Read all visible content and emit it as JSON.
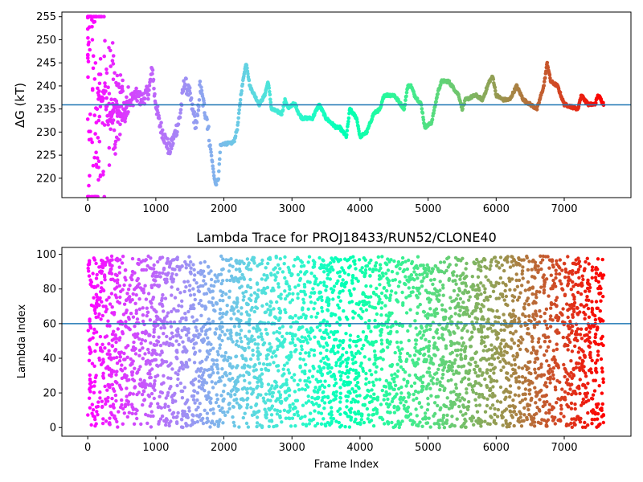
{
  "chart_data": [
    {
      "type": "scatter",
      "title": "",
      "xlabel": "",
      "ylabel": "ΔG (kT)",
      "xlim": [
        -380,
        7980
      ],
      "ylim": [
        215.8,
        256.0
      ],
      "x_ticks": [
        0,
        1000,
        2000,
        3000,
        4000,
        5000,
        6000,
        7000
      ],
      "y_ticks": [
        220,
        225,
        230,
        235,
        240,
        245,
        250,
        255
      ],
      "hline": 235.9,
      "colormap": "rainbow",
      "color_by": "x",
      "grid": false,
      "x_range": [
        0,
        7580
      ],
      "trace_points": [
        [
          0,
          250
        ],
        [
          20,
          245
        ],
        [
          40,
          220
        ],
        [
          60,
          235
        ],
        [
          80,
          248
        ],
        [
          100,
          228
        ],
        [
          150,
          238
        ],
        [
          200,
          236
        ],
        [
          250,
          240
        ],
        [
          300,
          232
        ],
        [
          400,
          236
        ],
        [
          500,
          234
        ],
        [
          600,
          236
        ],
        [
          700,
          238
        ],
        [
          800,
          237
        ],
        [
          900,
          239
        ],
        [
          950,
          244
        ],
        [
          980,
          238
        ],
        [
          1050,
          232
        ],
        [
          1100,
          230
        ],
        [
          1200,
          226
        ],
        [
          1250,
          228
        ],
        [
          1350,
          233
        ],
        [
          1420,
          241
        ],
        [
          1500,
          238
        ],
        [
          1550,
          234
        ],
        [
          1600,
          231
        ],
        [
          1650,
          240
        ],
        [
          1700,
          236
        ],
        [
          1750,
          233
        ],
        [
          1800,
          227
        ],
        [
          1850,
          221
        ],
        [
          1880,
          218.5
        ],
        [
          1920,
          220
        ],
        [
          1950,
          227
        ],
        [
          2000,
          227.5
        ],
        [
          2100,
          227.5
        ],
        [
          2150,
          228
        ],
        [
          2200,
          231
        ],
        [
          2250,
          238
        ],
        [
          2300,
          243
        ],
        [
          2330,
          245
        ],
        [
          2380,
          240
        ],
        [
          2450,
          238
        ],
        [
          2520,
          236
        ],
        [
          2600,
          238
        ],
        [
          2650,
          241
        ],
        [
          2700,
          235
        ],
        [
          2850,
          234
        ],
        [
          2900,
          237
        ],
        [
          2950,
          235
        ],
        [
          3000,
          236
        ],
        [
          3050,
          236
        ],
        [
          3100,
          234
        ],
        [
          3150,
          233
        ],
        [
          3300,
          233
        ],
        [
          3400,
          236
        ],
        [
          3500,
          233
        ],
        [
          3650,
          231
        ],
        [
          3700,
          231
        ],
        [
          3800,
          229
        ],
        [
          3850,
          235
        ],
        [
          3950,
          233
        ],
        [
          4000,
          229
        ],
        [
          4100,
          230
        ],
        [
          4200,
          234
        ],
        [
          4300,
          235
        ],
        [
          4350,
          238
        ],
        [
          4500,
          238
        ],
        [
          4550,
          237
        ],
        [
          4650,
          235
        ],
        [
          4700,
          240
        ],
        [
          4750,
          240
        ],
        [
          4800,
          238
        ],
        [
          4900,
          236
        ],
        [
          4950,
          231
        ],
        [
          5050,
          232
        ],
        [
          5150,
          239
        ],
        [
          5200,
          241
        ],
        [
          5300,
          241
        ],
        [
          5400,
          239
        ],
        [
          5450,
          238
        ],
        [
          5500,
          235
        ],
        [
          5550,
          237
        ],
        [
          5700,
          238
        ],
        [
          5800,
          237
        ],
        [
          5900,
          241
        ],
        [
          5950,
          242
        ],
        [
          6000,
          238
        ],
        [
          6100,
          237
        ],
        [
          6200,
          237
        ],
        [
          6300,
          240
        ],
        [
          6400,
          237
        ],
        [
          6500,
          236
        ],
        [
          6600,
          235
        ],
        [
          6700,
          240
        ],
        [
          6750,
          245
        ],
        [
          6800,
          241
        ],
        [
          6900,
          240
        ],
        [
          7000,
          236
        ],
        [
          7200,
          235
        ],
        [
          7250,
          238
        ],
        [
          7350,
          236
        ],
        [
          7450,
          236
        ],
        [
          7500,
          238
        ],
        [
          7580,
          236
        ]
      ],
      "early_scatter": {
        "x_range": [
          0,
          600
        ],
        "y_range": [
          216,
          255
        ]
      }
    },
    {
      "type": "scatter",
      "title": "Lambda Trace for PROJ18433/RUN52/CLONE40",
      "xlabel": "Frame Index",
      "ylabel": "Lambda Index",
      "xlim": [
        -380,
        7980
      ],
      "ylim": [
        -5,
        104
      ],
      "x_ticks": [
        0,
        1000,
        2000,
        3000,
        4000,
        5000,
        6000,
        7000
      ],
      "y_ticks": [
        0,
        20,
        40,
        60,
        80,
        100
      ],
      "hline": 60,
      "colormap": "rainbow",
      "color_by": "x",
      "grid": false,
      "x_range": [
        0,
        7580
      ],
      "y_range": [
        0,
        99
      ]
    }
  ]
}
